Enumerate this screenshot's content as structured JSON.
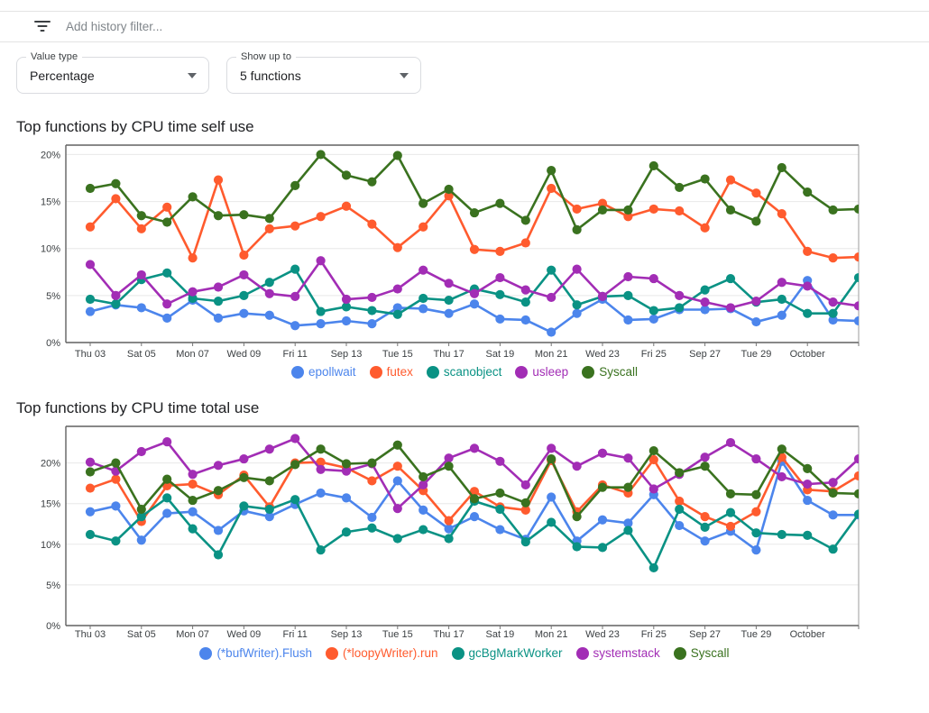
{
  "filter_bar": {
    "icon": "filter-list-icon",
    "placeholder": "Add history filter..."
  },
  "controls": {
    "value_type": {
      "label": "Value type",
      "value": "Percentage"
    },
    "show_up_to": {
      "label": "Show up to",
      "value": "5 functions"
    }
  },
  "palette": {
    "blue": "#4c85ec",
    "orange": "#ff5b2e",
    "teal": "#0a9284",
    "purple": "#a22db5",
    "green": "#3a721f"
  },
  "chart_data": [
    {
      "type": "line",
      "title": "Top functions by CPU time self use",
      "x_tick_labels": [
        "Thu 03",
        "Sat 05",
        "Mon 07",
        "Wed 09",
        "Fri 11",
        "Sep 13",
        "Tue 15",
        "Thu 17",
        "Sat 19",
        "Mon 21",
        "Wed 23",
        "Fri 25",
        "Sep 27",
        "Tue 29",
        "October"
      ],
      "y_tick_labels": [
        "0%",
        "5%",
        "10%",
        "15%",
        "20%"
      ],
      "y_ticks": [
        0,
        5,
        10,
        15,
        20
      ],
      "ylim": [
        0,
        21
      ],
      "grid": true,
      "legend_position": "bottom",
      "series": [
        {
          "name": "epollwait",
          "color": "#4c85ec",
          "values": [
            3.3,
            4.0,
            3.7,
            2.6,
            4.5,
            2.6,
            3.1,
            2.9,
            1.8,
            2.0,
            2.3,
            2.0,
            3.7,
            3.6,
            3.1,
            4.1,
            2.5,
            2.4,
            1.1,
            3.1,
            4.6,
            2.4,
            2.5,
            3.5,
            3.5,
            3.6,
            2.2,
            2.9,
            6.6,
            2.4,
            2.3
          ]
        },
        {
          "name": "futex",
          "color": "#ff5b2e",
          "values": [
            12.3,
            15.3,
            12.1,
            14.4,
            9.0,
            17.3,
            9.3,
            12.1,
            12.4,
            13.4,
            14.5,
            12.6,
            10.1,
            12.3,
            15.6,
            9.9,
            9.7,
            10.6,
            16.4,
            14.2,
            14.8,
            13.4,
            14.2,
            14.0,
            12.2,
            17.3,
            15.9,
            13.7,
            9.7,
            9.0,
            9.1
          ]
        },
        {
          "name": "scanobject",
          "color": "#0a9284",
          "values": [
            4.6,
            4.1,
            6.7,
            7.4,
            4.7,
            4.4,
            5.0,
            6.4,
            7.8,
            3.3,
            3.8,
            3.4,
            3.0,
            4.7,
            4.5,
            5.7,
            5.1,
            4.3,
            7.7,
            4.0,
            4.9,
            5.0,
            3.4,
            3.7,
            5.6,
            6.8,
            4.3,
            4.6,
            3.1,
            3.1,
            6.9
          ]
        },
        {
          "name": "usleep",
          "color": "#a22db5",
          "values": [
            8.3,
            5.0,
            7.2,
            4.1,
            5.4,
            5.9,
            7.2,
            5.2,
            4.9,
            8.7,
            4.6,
            4.8,
            5.7,
            7.7,
            6.3,
            5.2,
            6.9,
            5.6,
            4.8,
            7.8,
            4.9,
            7.0,
            6.8,
            5.0,
            4.3,
            3.7,
            4.4,
            6.4,
            6.0,
            4.3,
            3.9
          ]
        },
        {
          "name": "Syscall",
          "color": "#3a721f",
          "values": [
            16.4,
            16.9,
            13.5,
            12.8,
            15.5,
            13.5,
            13.6,
            13.2,
            16.7,
            20.0,
            17.8,
            17.1,
            19.9,
            14.8,
            16.3,
            13.8,
            14.8,
            13.0,
            18.3,
            12.0,
            14.1,
            14.1,
            18.8,
            16.5,
            17.4,
            14.1,
            12.9,
            18.6,
            16.0,
            14.1,
            14.2
          ]
        }
      ]
    },
    {
      "type": "line",
      "title": "Top functions by CPU time total use",
      "x_tick_labels": [
        "Thu 03",
        "Sat 05",
        "Mon 07",
        "Wed 09",
        "Fri 11",
        "Sep 13",
        "Tue 15",
        "Thu 17",
        "Sat 19",
        "Mon 21",
        "Wed 23",
        "Fri 25",
        "Sep 27",
        "Tue 29",
        "October"
      ],
      "y_tick_labels": [
        "0%",
        "5%",
        "10%",
        "15%",
        "20%"
      ],
      "y_ticks": [
        0,
        5,
        10,
        15,
        20
      ],
      "ylim": [
        0,
        24.5
      ],
      "grid": true,
      "legend_position": "bottom",
      "series": [
        {
          "name": "(*bufWriter).Flush",
          "color": "#4c85ec",
          "values": [
            14.0,
            14.7,
            10.5,
            13.8,
            14.0,
            11.7,
            14.1,
            13.4,
            14.9,
            16.3,
            15.7,
            13.3,
            17.8,
            14.2,
            11.9,
            13.4,
            11.8,
            10.6,
            15.8,
            10.4,
            13.0,
            12.6,
            16.1,
            12.3,
            10.4,
            11.6,
            9.3,
            20.2,
            15.4,
            13.6,
            13.6
          ]
        },
        {
          "name": "(*loopyWriter).run",
          "color": "#ff5b2e",
          "values": [
            16.9,
            18.0,
            12.8,
            17.2,
            17.4,
            16.1,
            18.5,
            14.6,
            20.0,
            20.1,
            19.4,
            17.8,
            19.6,
            16.6,
            12.9,
            16.5,
            14.6,
            14.2,
            20.3,
            14.0,
            17.3,
            16.3,
            20.4,
            15.3,
            13.4,
            12.2,
            14.0,
            20.7,
            16.7,
            16.5,
            18.4
          ]
        },
        {
          "name": "gcBgMarkWorker",
          "color": "#0a9284",
          "values": [
            11.2,
            10.4,
            13.4,
            15.7,
            11.9,
            8.7,
            14.7,
            14.3,
            15.5,
            9.3,
            11.5,
            12.0,
            10.7,
            11.8,
            10.7,
            15.3,
            14.3,
            10.3,
            12.7,
            9.7,
            9.6,
            11.7,
            7.1,
            14.3,
            12.1,
            13.9,
            11.4,
            11.2,
            11.1,
            9.4,
            13.7
          ]
        },
        {
          "name": "systemstack",
          "color": "#a22db5",
          "values": [
            20.1,
            19.0,
            21.4,
            22.6,
            18.6,
            19.7,
            20.5,
            21.7,
            23.0,
            19.2,
            19.0,
            19.9,
            14.4,
            17.3,
            20.6,
            21.8,
            20.2,
            17.3,
            21.8,
            19.6,
            21.2,
            20.6,
            16.8,
            18.6,
            20.7,
            22.5,
            20.5,
            18.3,
            17.4,
            17.6,
            20.5
          ]
        },
        {
          "name": "Syscall",
          "color": "#3a721f",
          "values": [
            18.9,
            20.0,
            14.3,
            18.0,
            15.4,
            16.6,
            18.2,
            17.8,
            19.8,
            21.7,
            19.9,
            20.0,
            22.2,
            18.3,
            19.6,
            15.6,
            16.3,
            15.1,
            20.5,
            13.4,
            17.0,
            17.0,
            21.5,
            18.8,
            19.6,
            16.2,
            16.1,
            21.7,
            19.3,
            16.3,
            16.2
          ]
        }
      ]
    }
  ]
}
